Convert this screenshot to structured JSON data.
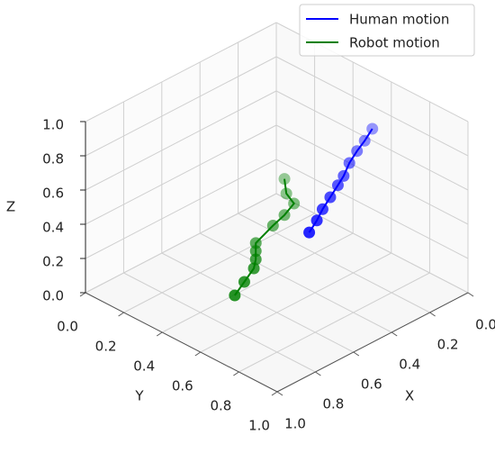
{
  "chart_data": {
    "type": "line3d",
    "xlabel": "X",
    "ylabel": "Y",
    "zlabel": "Z",
    "xlim": [
      0,
      1
    ],
    "ylim": [
      0,
      1
    ],
    "zlim": [
      0,
      1
    ],
    "xticks": [
      {
        "value": 0,
        "label": "0.0"
      },
      0.2,
      0.4,
      0.6,
      0.8,
      {
        "value": 1,
        "label": "1.0"
      }
    ],
    "yticks": [
      {
        "value": 0,
        "label": "0.0"
      },
      0.2,
      0.4,
      0.6,
      0.8,
      {
        "value": 1,
        "label": "1.0"
      }
    ],
    "zticks": [
      {
        "value": 0,
        "label": "0.0"
      },
      0.2,
      0.4,
      0.6,
      0.8,
      {
        "value": 1,
        "label": "1.0"
      }
    ],
    "grid": true,
    "legend": "upper right",
    "series": [
      {
        "name": "Human motion",
        "color": "#0000ff",
        "x": [
          0.37,
          0.35,
          0.33,
          0.31,
          0.29,
          0.28,
          0.26,
          0.24,
          0.22,
          0.2
        ],
        "y": [
          0.54,
          0.56,
          0.57,
          0.59,
          0.61,
          0.63,
          0.64,
          0.66,
          0.68,
          0.7
        ],
        "z": [
          0.3,
          0.37,
          0.43,
          0.5,
          0.57,
          0.63,
          0.7,
          0.77,
          0.83,
          0.9
        ]
      },
      {
        "name": "Robot motion",
        "color": "#008000",
        "x": [
          0.71,
          0.66,
          0.61,
          0.62,
          0.63,
          0.65,
          0.56,
          0.52,
          0.48,
          0.51,
          0.51
        ],
        "y": [
          0.49,
          0.49,
          0.49,
          0.51,
          0.52,
          0.54,
          0.54,
          0.56,
          0.57,
          0.56,
          0.55
        ],
        "z": [
          0.1,
          0.15,
          0.2,
          0.27,
          0.33,
          0.4,
          0.45,
          0.5,
          0.55,
          0.62,
          0.7
        ]
      }
    ]
  }
}
